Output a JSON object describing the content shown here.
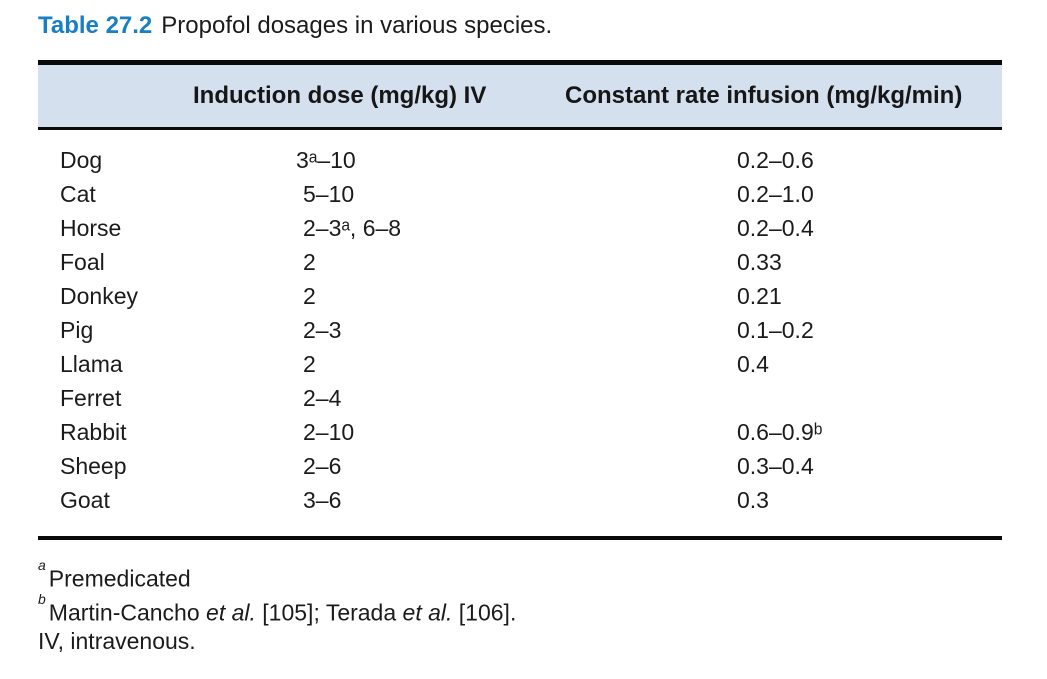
{
  "caption": {
    "label": "Table 27.2",
    "text": "Propofol dosages in various species."
  },
  "table": {
    "columns": [
      "Induction dose (mg/kg) IV",
      "Constant rate infusion (mg/kg/min)"
    ],
    "rows": [
      {
        "species": "Dog",
        "induction": "3ᵃ–10",
        "infusion": "0.2–0.6"
      },
      {
        "species": "Cat",
        "induction": "5–10",
        "infusion": "0.2–1.0"
      },
      {
        "species": "Horse",
        "induction": "2–3ᵃ, 6–8",
        "infusion": "0.2–0.4"
      },
      {
        "species": "Foal",
        "induction": "2",
        "infusion": "0.33"
      },
      {
        "species": "Donkey",
        "induction": "2",
        "infusion": "0.21"
      },
      {
        "species": "Pig",
        "induction": "2–3",
        "infusion": "0.1–0.2"
      },
      {
        "species": "Llama",
        "induction": "2",
        "infusion": "0.4"
      },
      {
        "species": "Ferret",
        "induction": "2–4",
        "infusion": ""
      },
      {
        "species": "Rabbit",
        "induction": "2–10",
        "infusion": "0.6–0.9ᵇ"
      },
      {
        "species": "Sheep",
        "induction": "2–6",
        "infusion": "0.3–0.4"
      },
      {
        "species": "Goat",
        "induction": "3–6",
        "infusion": "0.3"
      }
    ]
  },
  "footnotes": {
    "a": {
      "marker": "a",
      "text": "Premedicated"
    },
    "b": {
      "marker": "b",
      "part1": "Martin-Cancho ",
      "etal1": "et al.",
      "part2": " [105]; Terada ",
      "etal2": "et al.",
      "part3": " [106]."
    },
    "abbrev": {
      "text": "IV, intravenous."
    }
  },
  "colors": {
    "accent_blue": "#177fc4",
    "header_background": "#d5e0ee",
    "text": "#1b1b1b",
    "rule": "#0a0a0a"
  }
}
